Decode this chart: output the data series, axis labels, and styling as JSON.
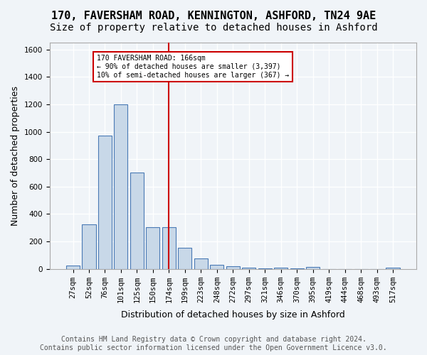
{
  "title": "170, FAVERSHAM ROAD, KENNINGTON, ASHFORD, TN24 9AE",
  "subtitle": "Size of property relative to detached houses in Ashford",
  "xlabel": "Distribution of detached houses by size in Ashford",
  "ylabel": "Number of detached properties",
  "bar_labels": [
    "27sqm",
    "52sqm",
    "76sqm",
    "101sqm",
    "125sqm",
    "150sqm",
    "174sqm",
    "199sqm",
    "223sqm",
    "248sqm",
    "272sqm",
    "297sqm",
    "321sqm",
    "346sqm",
    "370sqm",
    "395sqm",
    "419sqm",
    "444sqm",
    "468sqm",
    "493sqm",
    "517sqm"
  ],
  "bar_values": [
    25,
    325,
    970,
    1200,
    700,
    305,
    305,
    155,
    75,
    30,
    20,
    10,
    5,
    10,
    5,
    15,
    0,
    0,
    0,
    0,
    10
  ],
  "bar_color": "#c8d8e8",
  "bar_edge_color": "#4a7ab5",
  "vline_x": 6,
  "vline_color": "#cc0000",
  "annotation_text": "170 FAVERSHAM ROAD: 166sqm\n← 90% of detached houses are smaller (3,397)\n10% of semi-detached houses are larger (367) →",
  "annotation_box_color": "white",
  "annotation_box_edge_color": "#cc0000",
  "ylim": [
    0,
    1650
  ],
  "yticks": [
    0,
    200,
    400,
    600,
    800,
    1000,
    1200,
    1400,
    1600
  ],
  "footer_text": "Contains HM Land Registry data © Crown copyright and database right 2024.\nContains public sector information licensed under the Open Government Licence v3.0.",
  "background_color": "#f0f4f8",
  "grid_color": "white",
  "title_fontsize": 11,
  "subtitle_fontsize": 10,
  "axis_label_fontsize": 9,
  "tick_fontsize": 7.5,
  "footer_fontsize": 7
}
